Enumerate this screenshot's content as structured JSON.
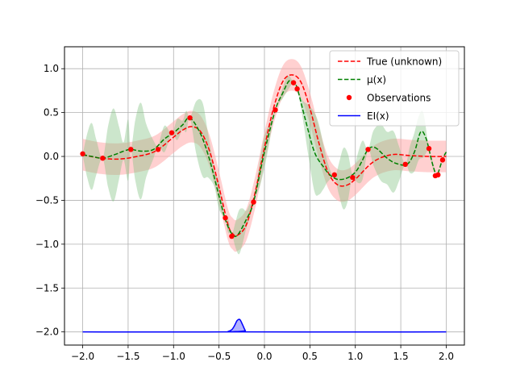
{
  "chart_data": {
    "type": "line",
    "title": "",
    "xlabel": "",
    "ylabel": "",
    "xlim": [
      -2.2,
      2.2
    ],
    "ylim": [
      -2.15,
      1.25
    ],
    "grid": true,
    "legend_placement": "top-right",
    "x_ticks": [
      -2.0,
      -1.5,
      -1.0,
      -0.5,
      0.0,
      0.5,
      1.0,
      1.5,
      2.0
    ],
    "x_tick_labels": [
      "−2.0",
      "−1.5",
      "−1.0",
      "−0.5",
      "0.0",
      "0.5",
      "1.0",
      "1.5",
      "2.0"
    ],
    "y_ticks": [
      1.0,
      0.5,
      0.0,
      -0.5,
      -1.0,
      -1.5,
      -2.0
    ],
    "y_tick_labels": [
      "1.0",
      "0.5",
      "0.0",
      "−0.5",
      "−1.0",
      "−1.5",
      "−2.0"
    ],
    "colors": {
      "true": "#ff0000",
      "mu": "#008000",
      "obs": "#ff0000",
      "ei": "#0000ff",
      "true_band": "#ffaaaa",
      "mu_band": "#80c080",
      "ei_fill": "#8080ff"
    },
    "series": [
      {
        "name": "True (unknown)",
        "style": "dashed",
        "x": [
          -2.0,
          -1.8,
          -1.6,
          -1.4,
          -1.2,
          -1.0,
          -0.9,
          -0.8,
          -0.7,
          -0.6,
          -0.5,
          -0.4,
          -0.35,
          -0.3,
          -0.2,
          -0.1,
          0.0,
          0.1,
          0.2,
          0.3,
          0.4,
          0.5,
          0.6,
          0.7,
          0.8,
          0.9,
          1.0,
          1.2,
          1.4,
          1.6,
          1.8,
          2.0
        ],
        "y": [
          0.02,
          -0.02,
          -0.03,
          0.0,
          0.06,
          0.22,
          0.3,
          0.34,
          0.28,
          0.05,
          -0.35,
          -0.78,
          -0.88,
          -0.9,
          -0.78,
          -0.4,
          0.1,
          0.55,
          0.85,
          0.93,
          0.85,
          0.55,
          0.15,
          -0.18,
          -0.32,
          -0.33,
          -0.26,
          -0.06,
          0.02,
          0.01,
          0.0,
          0.0
        ]
      },
      {
        "name": "μ(x)",
        "style": "dashed",
        "x": [
          -2.0,
          -1.9,
          -1.78,
          -1.65,
          -1.55,
          -1.47,
          -1.35,
          -1.22,
          -1.1,
          -1.0,
          -0.9,
          -0.82,
          -0.7,
          -0.6,
          -0.5,
          -0.43,
          -0.36,
          -0.3,
          -0.2,
          -0.12,
          0.0,
          0.12,
          0.2,
          0.27,
          0.32,
          0.36,
          0.45,
          0.55,
          0.65,
          0.72,
          0.8,
          0.9,
          1.0,
          1.07,
          1.14,
          1.22,
          1.35,
          1.45,
          1.57,
          1.65,
          1.72,
          1.78,
          1.84,
          1.88,
          1.9,
          1.96,
          2.0
        ],
        "y": [
          0.02,
          0.0,
          -0.02,
          0.02,
          0.06,
          0.08,
          0.06,
          0.08,
          0.2,
          0.27,
          0.36,
          0.44,
          0.25,
          -0.05,
          -0.45,
          -0.72,
          -0.88,
          -0.9,
          -0.72,
          -0.52,
          0.05,
          0.53,
          0.72,
          0.86,
          0.84,
          0.78,
          0.42,
          0.05,
          -0.12,
          -0.21,
          -0.26,
          -0.25,
          -0.18,
          -0.06,
          0.08,
          0.1,
          -0.02,
          -0.08,
          -0.09,
          0.05,
          0.28,
          0.2,
          -0.05,
          -0.19,
          -0.22,
          -0.03,
          0.05
        ]
      },
      {
        "name": "Observations",
        "style": "markers",
        "x": [
          -2.0,
          -1.78,
          -1.47,
          -1.17,
          -1.02,
          -0.82,
          -0.43,
          -0.36,
          -0.12,
          0.12,
          0.32,
          0.36,
          0.77,
          0.97,
          1.14,
          1.55,
          1.81,
          1.88,
          1.91,
          1.96
        ],
        "y": [
          0.03,
          -0.02,
          0.08,
          0.08,
          0.27,
          0.44,
          -0.7,
          -0.91,
          -0.52,
          0.53,
          0.84,
          0.77,
          -0.21,
          -0.24,
          0.08,
          -0.09,
          0.09,
          -0.22,
          -0.21,
          -0.04
        ]
      },
      {
        "name": "EI(x)",
        "style": "solid",
        "x": [
          -2.0,
          -0.45,
          -0.4,
          -0.36,
          -0.33,
          -0.3,
          -0.27,
          -0.24,
          -0.21,
          -0.18,
          2.0
        ],
        "y": [
          -2.0,
          -2.0,
          -1.995,
          -1.975,
          -1.93,
          -1.87,
          -1.86,
          -1.92,
          -1.985,
          -2.0,
          -2.0
        ]
      }
    ],
    "bands": [
      {
        "of": "True (unknown)",
        "x": [
          -2.0,
          -1.8,
          -1.6,
          -1.4,
          -1.2,
          -1.0,
          -0.9,
          -0.8,
          -0.7,
          -0.6,
          -0.5,
          -0.4,
          -0.35,
          -0.3,
          -0.2,
          -0.1,
          0.0,
          0.1,
          0.2,
          0.3,
          0.4,
          0.5,
          0.6,
          0.7,
          0.8,
          0.9,
          1.0,
          1.2,
          1.4,
          1.6,
          1.8,
          2.0
        ],
        "half_width": 0.18
      },
      {
        "of": "μ(x)",
        "x": [
          -2.0,
          -1.95,
          -1.9,
          -1.85,
          -1.78,
          -1.72,
          -1.66,
          -1.6,
          -1.55,
          -1.5,
          -1.47,
          -1.42,
          -1.36,
          -1.3,
          -1.22,
          -1.17,
          -1.1,
          -1.02,
          -0.96,
          -0.9,
          -0.86,
          -0.82,
          -0.75,
          -0.68,
          -0.62,
          -0.55,
          -0.5,
          -0.43,
          -0.4,
          -0.36,
          -0.32,
          -0.28,
          -0.24,
          -0.2,
          -0.16,
          -0.12,
          -0.05,
          0.0,
          0.05,
          0.12,
          0.2,
          0.26,
          0.32,
          0.36,
          0.42,
          0.48,
          0.55,
          0.6,
          0.65,
          0.7,
          0.77,
          0.82,
          0.87,
          0.92,
          0.97,
          1.02,
          1.08,
          1.14,
          1.2,
          1.28,
          1.35,
          1.42,
          1.48,
          1.55,
          1.6,
          1.65,
          1.7,
          1.75,
          1.81,
          1.84,
          1.88,
          1.91,
          1.96,
          2.0
        ],
        "half_width": [
          0.0,
          0.25,
          0.38,
          0.2,
          0.0,
          0.35,
          0.53,
          0.3,
          0.1,
          0.35,
          0.0,
          0.35,
          0.55,
          0.3,
          0.1,
          0.0,
          0.15,
          0.0,
          0.12,
          0.05,
          0.12,
          0.0,
          0.3,
          0.42,
          0.25,
          0.1,
          0.15,
          0.0,
          0.08,
          0.0,
          0.14,
          0.25,
          0.2,
          0.1,
          0.08,
          0.0,
          0.15,
          0.18,
          0.12,
          0.0,
          0.06,
          0.08,
          0.0,
          0.0,
          0.1,
          0.28,
          0.45,
          0.4,
          0.25,
          0.1,
          0.0,
          0.18,
          0.35,
          0.26,
          0.0,
          0.15,
          0.22,
          0.0,
          0.2,
          0.32,
          0.3,
          0.35,
          0.2,
          0.0,
          0.15,
          0.22,
          0.25,
          0.25,
          0.0,
          0.04,
          0.0,
          0.0,
          0.0,
          0.0
        ]
      }
    ]
  }
}
